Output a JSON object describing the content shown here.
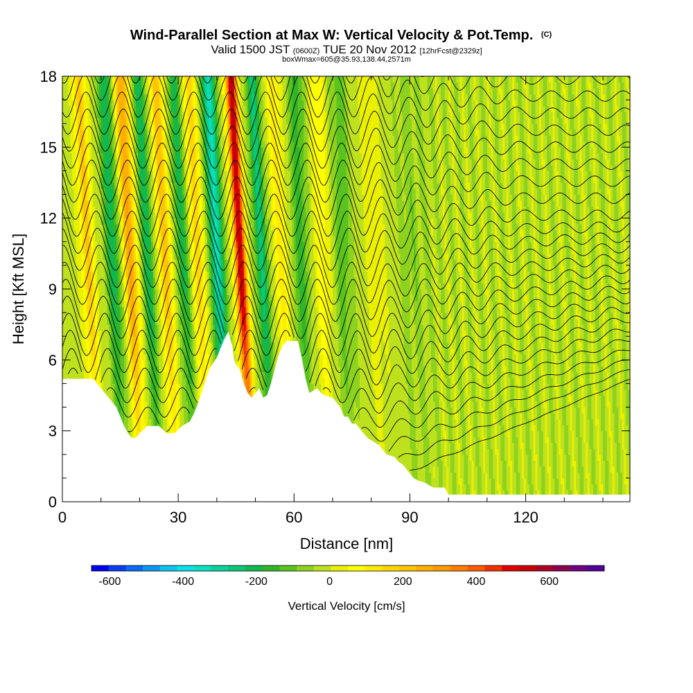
{
  "chart_data": {
    "type": "heatmap",
    "title": "Wind-Parallel Section at Max W: Vertical Velocity & Pot.Temp.",
    "title_mark": "(C)",
    "subtitle": {
      "part1": "Valid 1500 JST ",
      "part2": "(0600Z)",
      "part3": " TUE 20 Nov 2012 ",
      "part4": "[12hrFcst@2329z]"
    },
    "subtitle2": "boxWmax=605@35.93,138.44,2571m",
    "xlabel": "Distance [nm]",
    "ylabel": "Height [Kft MSL]",
    "xlim": [
      0,
      147
    ],
    "ylim": [
      0,
      18
    ],
    "xticks": [
      0,
      30,
      60,
      90,
      120
    ],
    "yticks": [
      0,
      3,
      6,
      9,
      12,
      15,
      18
    ],
    "colorbar": {
      "label": "Vertical Velocity [cm/s]",
      "ticks": [
        -600,
        -400,
        -200,
        0,
        200,
        400,
        600
      ],
      "range": [
        -650,
        750
      ],
      "step": 50,
      "colors": [
        "#0000f0",
        "#0a3cf0",
        "#0a6af5",
        "#0a96f5",
        "#0ac3f0",
        "#0ae0e8",
        "#0ae0c0",
        "#0ad29a",
        "#0ac878",
        "#10b850",
        "#32b428",
        "#5ac31e",
        "#8cd21e",
        "#bee11e",
        "#ebf000",
        "#ffff00",
        "#ffeb00",
        "#ffd700",
        "#ffc300",
        "#ffaf00",
        "#ff9b00",
        "#ff7d00",
        "#ff5a00",
        "#f03000",
        "#e00000",
        "#c80000",
        "#aa0028",
        "#8c0050",
        "#6e0082",
        "#500096"
      ]
    },
    "w_features": [
      {
        "x": 7,
        "w": 230,
        "s": 1.8
      },
      {
        "x": 13.5,
        "w": -210,
        "s": 1.7
      },
      {
        "x": 18,
        "w": 330,
        "s": 1.8
      },
      {
        "x": 22.5,
        "w": -200,
        "s": 1.6
      },
      {
        "x": 27,
        "w": 250,
        "s": 1.8
      },
      {
        "x": 31.5,
        "w": -180,
        "s": 1.6
      },
      {
        "x": 35.5,
        "w": 220,
        "s": 1.5
      },
      {
        "x": 40.5,
        "w": -340,
        "s": 1.7
      },
      {
        "x": 46.5,
        "w": 620,
        "s": 1.5
      },
      {
        "x": 52,
        "w": -230,
        "s": 1.7
      },
      {
        "x": 57,
        "w": 150,
        "s": 1.9
      },
      {
        "x": 62,
        "w": -140,
        "s": 2.0
      },
      {
        "x": 67.5,
        "w": 110,
        "s": 2.2
      },
      {
        "x": 73,
        "w": -90,
        "s": 2.4
      },
      {
        "x": 81,
        "w": 60,
        "s": 3.2
      },
      {
        "x": 91,
        "w": -40,
        "s": 3.5
      }
    ],
    "terrain": [
      [
        0,
        5.2
      ],
      [
        8,
        5.2
      ],
      [
        10,
        4.8
      ],
      [
        12,
        4.4
      ],
      [
        14,
        4.0
      ],
      [
        15,
        3.6
      ],
      [
        16,
        3.2
      ],
      [
        17,
        2.9
      ],
      [
        18,
        2.7
      ],
      [
        19,
        2.7
      ],
      [
        20,
        2.9
      ],
      [
        22,
        3.2
      ],
      [
        25,
        3.2
      ],
      [
        27,
        2.9
      ],
      [
        29,
        2.9
      ],
      [
        31,
        3.2
      ],
      [
        33,
        3.4
      ],
      [
        34,
        3.7
      ],
      [
        35,
        4.1
      ],
      [
        36,
        4.6
      ],
      [
        37,
        5.1
      ],
      [
        38,
        5.6
      ],
      [
        40,
        6.1
      ],
      [
        41,
        6.5
      ],
      [
        42,
        6.9
      ],
      [
        43,
        7.2
      ],
      [
        44,
        6.6
      ],
      [
        44.5,
        6.0
      ],
      [
        45,
        5.8
      ],
      [
        46,
        5.6
      ],
      [
        47,
        5.0
      ],
      [
        48,
        4.6
      ],
      [
        49,
        4.4
      ],
      [
        50,
        4.6
      ],
      [
        51,
        4.8
      ],
      [
        52,
        4.4
      ],
      [
        53,
        4.5
      ],
      [
        54,
        5.0
      ],
      [
        55,
        5.6
      ],
      [
        56,
        6.2
      ],
      [
        57,
        6.6
      ],
      [
        58,
        6.8
      ],
      [
        61,
        6.8
      ],
      [
        62,
        6.1
      ],
      [
        63,
        5.2
      ],
      [
        64,
        4.6
      ],
      [
        66,
        4.8
      ],
      [
        67,
        4.6
      ],
      [
        68,
        4.5
      ],
      [
        70,
        4.4
      ],
      [
        71,
        4.2
      ],
      [
        72,
        4.0
      ],
      [
        73,
        3.6
      ],
      [
        74,
        3.6
      ],
      [
        75,
        3.3
      ],
      [
        76,
        3.3
      ],
      [
        77,
        3.1
      ],
      [
        78,
        2.9
      ],
      [
        79,
        2.7
      ],
      [
        80,
        2.6
      ],
      [
        82,
        2.4
      ],
      [
        83,
        2.2
      ],
      [
        84,
        2.0
      ],
      [
        86,
        1.9
      ],
      [
        87,
        1.7
      ],
      [
        88,
        1.6
      ],
      [
        89,
        1.4
      ],
      [
        90,
        1.2
      ],
      [
        91,
        1.0
      ],
      [
        92,
        0.9
      ],
      [
        94,
        0.8
      ],
      [
        95,
        0.7
      ],
      [
        96,
        0.6
      ],
      [
        99,
        0.6
      ],
      [
        100,
        0.3
      ],
      [
        147,
        0.3
      ]
    ],
    "theta": {
      "base": 8,
      "step": 1,
      "count": 26
    }
  }
}
